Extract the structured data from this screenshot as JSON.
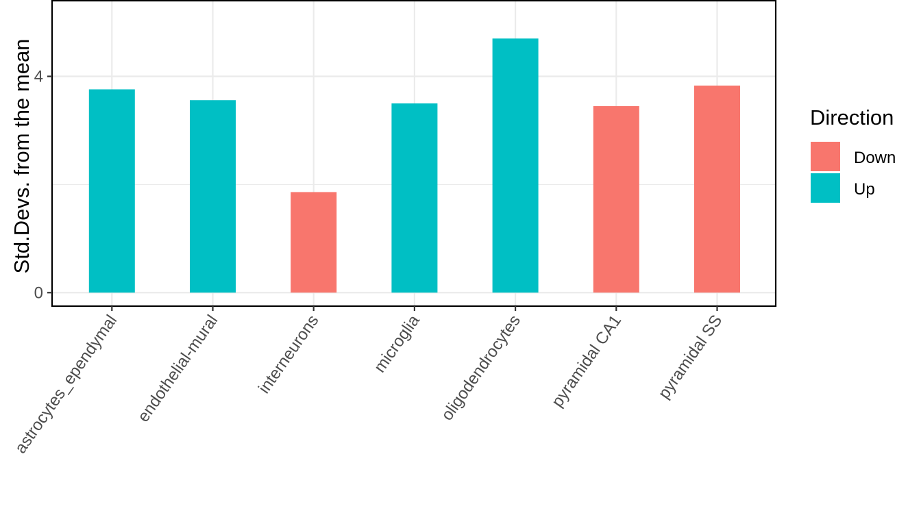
{
  "chart_data": {
    "type": "bar",
    "xlabel": "",
    "ylabel": "Std.Devs. from the mean",
    "ylim": [
      -0.25,
      5.4
    ],
    "y_ticks": [
      0,
      4
    ],
    "y_tick_labels": [
      "0",
      "4"
    ],
    "grid": true,
    "legend_position": "right",
    "legend_title": "Direction",
    "categories": [
      "astrocytes_ependymal",
      "endothelial-mural",
      "interneurons",
      "microglia",
      "oligodendrocytes",
      "pyramidal CA1",
      "pyramidal SS"
    ],
    "series": [
      {
        "name": "Down",
        "color": "#F8766D",
        "values": [
          null,
          null,
          1.86,
          null,
          null,
          3.45,
          3.83
        ]
      },
      {
        "name": "Up",
        "color": "#00BFC4",
        "values": [
          3.76,
          3.56,
          null,
          3.5,
          4.7,
          null,
          null
        ]
      }
    ]
  }
}
